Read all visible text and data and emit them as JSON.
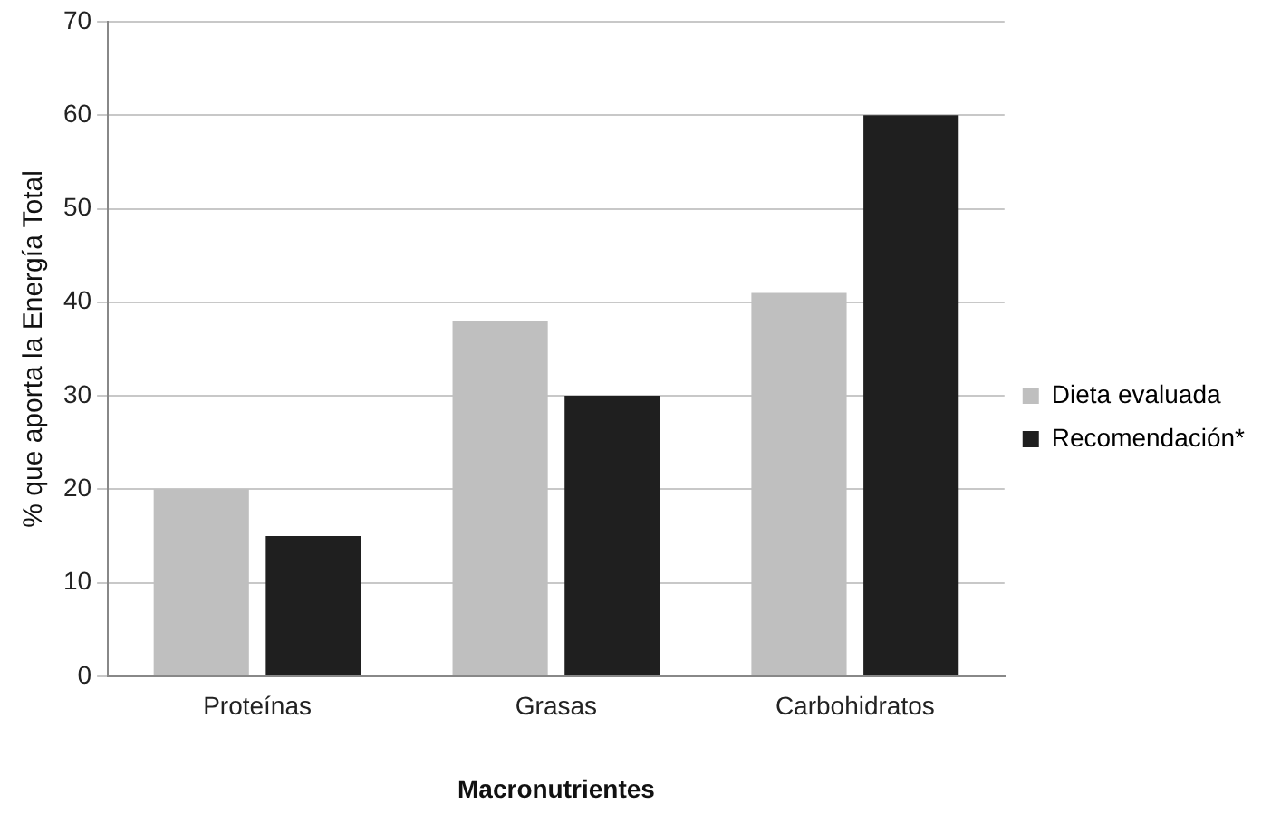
{
  "chart_data": {
    "type": "bar",
    "xlabel": "Macronutrientes",
    "ylabel": "% que aporta la Energía Total",
    "categories": [
      "Proteínas",
      "Grasas",
      "Carbohidratos"
    ],
    "series": [
      {
        "name": "Dieta evaluada",
        "color": "#bfbfbf",
        "values": [
          20,
          38,
          41
        ]
      },
      {
        "name": "Recomendación*",
        "color": "#1f1f1f",
        "values": [
          15,
          30,
          60
        ]
      }
    ],
    "ylim": [
      0,
      70
    ],
    "yticks": [
      0,
      10,
      20,
      30,
      40,
      50,
      60,
      70
    ],
    "grid": "y",
    "legend": "right"
  }
}
